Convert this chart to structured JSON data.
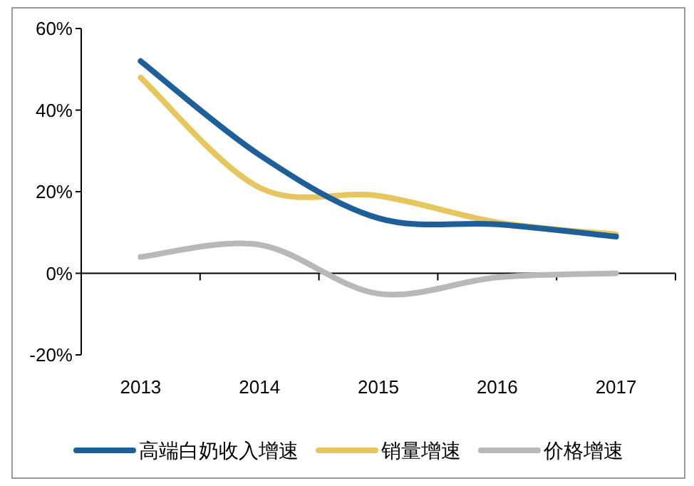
{
  "chart_data": {
    "type": "line",
    "categories": [
      "2013",
      "2014",
      "2015",
      "2016",
      "2017"
    ],
    "series": [
      {
        "name": "高端白奶收入增速",
        "color": "#1f5f99",
        "values": [
          52,
          29,
          13.5,
          12,
          9
        ]
      },
      {
        "name": "销量增速",
        "color": "#e6c75f",
        "values": [
          48,
          21,
          19,
          12.5,
          9.5
        ]
      },
      {
        "name": "价格增速",
        "color": "#b8b8b8",
        "values": [
          4,
          7,
          -5,
          -1,
          0
        ]
      }
    ],
    "ylim": [
      -20,
      60
    ],
    "yticks": [
      {
        "value": -20,
        "label": "-20%"
      },
      {
        "value": 0,
        "label": "0%"
      },
      {
        "value": 20,
        "label": "20%"
      },
      {
        "value": 40,
        "label": "40%"
      },
      {
        "value": 60,
        "label": "60%"
      }
    ],
    "legend": "bottom"
  }
}
